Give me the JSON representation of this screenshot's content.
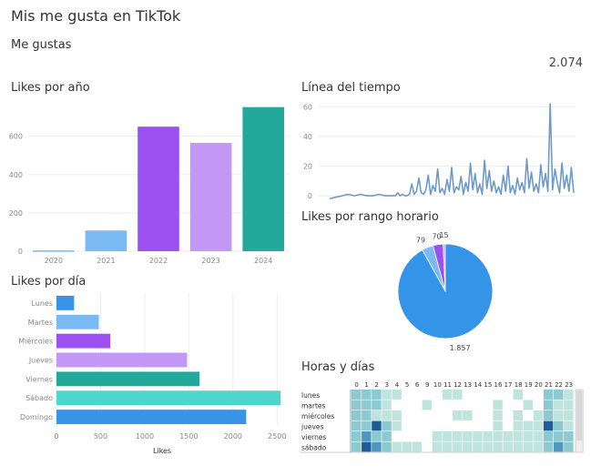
{
  "header": {
    "title": "Mis me gusta en TikTok",
    "subtitle": "Me gustas",
    "total_likes": "2.074"
  },
  "colors": {
    "blue_light": "#7ab9f2",
    "purple": "#9b51f0",
    "lavender": "#c397f5",
    "teal": "#23a89c",
    "teal_light": "#4fd6cc",
    "blue": "#3a94e6",
    "line": "#6f9ac8",
    "pie_blue": "#3495e8",
    "pie_light": "#7ab9f2",
    "pie_purple": "#9b51f0",
    "pie_lavender": "#c397f5",
    "grid": "#eeeeee",
    "axis_text": "#888888"
  },
  "chart_data": [
    {
      "id": "likes-por-ano",
      "type": "bar",
      "title": "Likes por año",
      "categories": [
        "2020",
        "2021",
        "2022",
        "2023",
        "2024"
      ],
      "values": [
        4,
        108,
        650,
        565,
        752
      ],
      "colors": [
        "#7ab9f2",
        "#7ab9f2",
        "#9b51f0",
        "#c397f5",
        "#23a89c"
      ],
      "yticks": [
        0,
        200,
        400,
        600
      ],
      "ylim": [
        0,
        760
      ],
      "grid": true
    },
    {
      "id": "linea-del-tiempo",
      "type": "line",
      "title": "Línea del tiempo",
      "yticks": [
        0,
        20,
        40,
        60
      ],
      "ylim": [
        -3,
        62
      ],
      "values": [
        -2,
        -1,
        0,
        1,
        0,
        1,
        0,
        0,
        1,
        0,
        0,
        0,
        2,
        0,
        1,
        0,
        0,
        1,
        8,
        1,
        3,
        12,
        2,
        1,
        4,
        14,
        1,
        7,
        3,
        18,
        2,
        5,
        1,
        11,
        3,
        19,
        2,
        6,
        4,
        13,
        1,
        9,
        3,
        22,
        4,
        15,
        2,
        8,
        1,
        24,
        5,
        17,
        3,
        10,
        2,
        6,
        1,
        14,
        3,
        20,
        2,
        7,
        1,
        12,
        4,
        9,
        2,
        25,
        5,
        16,
        3,
        8,
        2,
        21,
        6,
        15,
        3,
        62,
        4,
        18,
        9,
        2,
        22,
        5,
        14,
        3,
        19,
        2
      ]
    },
    {
      "id": "likes-por-rango-horario",
      "type": "pie",
      "title": "Likes por rango horario",
      "values": [
        1857,
        79,
        70,
        15
      ],
      "labels": [
        "1.857",
        "79",
        "70",
        "15"
      ],
      "colors": [
        "#3495e8",
        "#7ab9f2",
        "#9b51f0",
        "#c397f5"
      ]
    },
    {
      "id": "likes-por-dia",
      "type": "bar",
      "orientation": "horizontal",
      "title": "Likes por día",
      "categories": [
        "Lunes",
        "Martes",
        "Miércoles",
        "Jueves",
        "Viernes",
        "Sábado",
        "Domingo"
      ],
      "values": [
        200,
        480,
        610,
        1480,
        1620,
        2540,
        2150
      ],
      "colors": [
        "#3a94e6",
        "#7ab9f2",
        "#9b51f0",
        "#c397f5",
        "#23a89c",
        "#4fd6cc",
        "#3a94e6"
      ],
      "xticks": [
        0,
        500,
        1000,
        1500,
        2000,
        2500
      ],
      "xlim": [
        0,
        2600
      ],
      "xlabel": "Likes",
      "grid": true
    },
    {
      "id": "horas-y-dias",
      "type": "heatmap",
      "title": "Horas y días",
      "columns": [
        "0",
        "1",
        "2",
        "3",
        "4",
        "5",
        "6",
        "9",
        "10",
        "11",
        "12",
        "13",
        "14",
        "15",
        "16",
        "17",
        "18",
        "19",
        "20",
        "21",
        "22",
        "23"
      ],
      "rows": [
        "lunes",
        "martes",
        "miércoles",
        "jueves",
        "viernes",
        "sábado"
      ],
      "levels": [
        [
          2,
          2,
          2,
          1,
          1,
          0,
          0,
          0,
          0,
          1,
          1,
          0,
          0,
          0,
          0,
          0,
          1,
          0,
          0,
          2,
          2,
          1
        ],
        [
          2,
          2,
          2,
          1,
          0,
          0,
          0,
          1,
          0,
          0,
          0,
          0,
          0,
          0,
          1,
          0,
          0,
          1,
          0,
          2,
          1,
          1
        ],
        [
          2,
          2,
          1,
          1,
          1,
          0,
          0,
          0,
          0,
          0,
          1,
          1,
          0,
          0,
          1,
          0,
          1,
          0,
          1,
          2,
          1,
          1
        ],
        [
          2,
          2,
          4,
          2,
          1,
          0,
          0,
          0,
          0,
          0,
          0,
          0,
          0,
          0,
          1,
          0,
          1,
          1,
          1,
          4,
          2,
          1
        ],
        [
          2,
          3,
          2,
          2,
          0,
          0,
          0,
          0,
          1,
          1,
          1,
          1,
          1,
          1,
          1,
          1,
          1,
          1,
          1,
          2,
          2,
          2
        ],
        [
          2,
          4,
          3,
          2,
          1,
          1,
          1,
          0,
          1,
          1,
          1,
          1,
          1,
          1,
          1,
          1,
          1,
          1,
          1,
          2,
          3,
          2
        ]
      ],
      "palette": [
        "#ffffff",
        "#bfe4de",
        "#8dc9d0",
        "#4f98bd",
        "#1f5c94"
      ]
    }
  ]
}
